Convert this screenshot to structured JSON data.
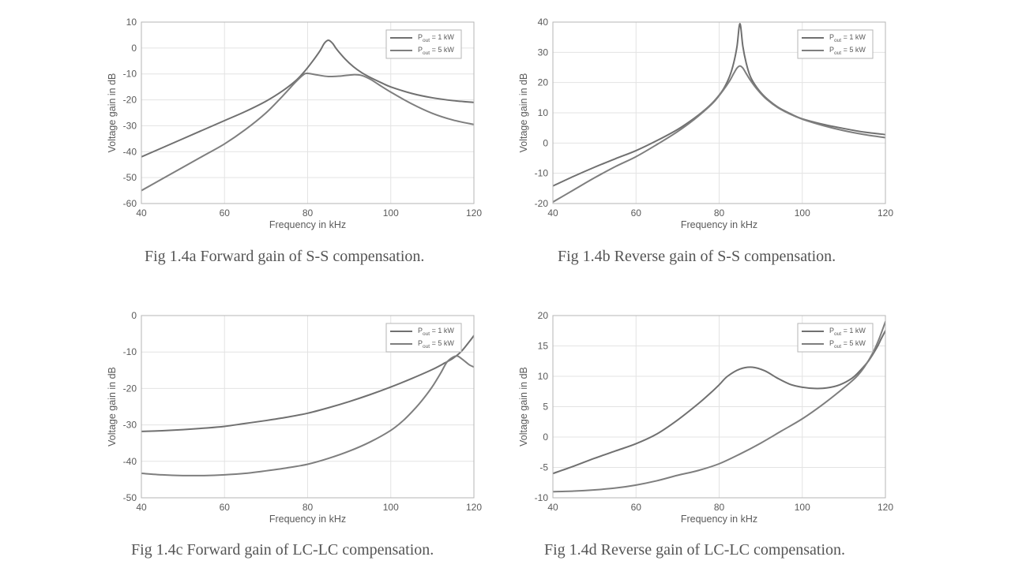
{
  "chart_data": [
    {
      "id": "a",
      "type": "line",
      "title": "",
      "xlabel": "Frequency in kHz",
      "ylabel": "Voltage gain in dB",
      "xlim": [
        40,
        120
      ],
      "ylim": [
        -60,
        10
      ],
      "xticks": [
        40,
        60,
        80,
        100,
        120
      ],
      "yticks": [
        -60,
        -50,
        -40,
        -30,
        -20,
        -10,
        0,
        10
      ],
      "grid": true,
      "legend_position": "top-right",
      "caption": "Fig 1.4a Forward gain of S-S compensation.",
      "series": [
        {
          "name": "P_out = 1 kW",
          "legend_main": "P",
          "legend_sub": "out",
          "legend_rest": " = 1 kW",
          "x": [
            40,
            45,
            50,
            55,
            60,
            65,
            70,
            74,
            77,
            79,
            81,
            83,
            84,
            85,
            86,
            87,
            89,
            91,
            93,
            95,
            98,
            100,
            105,
            110,
            115,
            120
          ],
          "y": [
            -42,
            -38.5,
            -35,
            -31.5,
            -28,
            -24.5,
            -20.5,
            -16.5,
            -12.8,
            -9.5,
            -5.5,
            -1,
            1.8,
            3,
            1.8,
            -0.5,
            -4.2,
            -7.2,
            -9.5,
            -11.3,
            -13.6,
            -15,
            -17.5,
            -19.2,
            -20.3,
            -21
          ]
        },
        {
          "name": "P_out = 5 kW",
          "legend_main": "P",
          "legend_sub": "out",
          "legend_rest": " = 5 kW",
          "x": [
            40,
            45,
            50,
            55,
            60,
            65,
            70,
            74,
            77,
            79,
            80,
            82,
            85,
            88,
            91,
            93,
            95,
            97,
            100,
            105,
            110,
            115,
            120
          ],
          "y": [
            -55,
            -50.5,
            -46,
            -41.5,
            -37,
            -31.5,
            -25,
            -18.5,
            -13.3,
            -10.3,
            -9.8,
            -10.3,
            -11,
            -10.8,
            -10.3,
            -10.6,
            -12,
            -14,
            -17,
            -21.5,
            -25.2,
            -27.8,
            -29.5
          ]
        }
      ]
    },
    {
      "id": "b",
      "type": "line",
      "title": "",
      "xlabel": "Frequency in kHz",
      "ylabel": "Voltage gain in dB",
      "xlim": [
        40,
        120
      ],
      "ylim": [
        -20,
        40
      ],
      "xticks": [
        40,
        60,
        80,
        100,
        120
      ],
      "yticks": [
        -20,
        -10,
        0,
        10,
        20,
        30,
        40
      ],
      "grid": true,
      "legend_position": "top-right",
      "caption": "Fig 1.4b Reverse gain of S-S compensation.",
      "series": [
        {
          "name": "P_out = 1 kW",
          "legend_main": "P",
          "legend_sub": "out",
          "legend_rest": " = 1 kW",
          "x": [
            40,
            45,
            50,
            55,
            60,
            65,
            70,
            74,
            77,
            79,
            81,
            82.5,
            83.5,
            84.3,
            85,
            85.7,
            86.5,
            87.5,
            89,
            91,
            94,
            97,
            100,
            105,
            110,
            115,
            120
          ],
          "y": [
            -14.2,
            -11,
            -8,
            -5.2,
            -2.5,
            0.8,
            4.5,
            8.2,
            11.5,
            14.2,
            17.8,
            22,
            26.5,
            32,
            39.5,
            32,
            26.5,
            22,
            18.5,
            15.3,
            12,
            9.8,
            8,
            6.2,
            4.8,
            3.6,
            2.8
          ]
        },
        {
          "name": "P_out = 5 kW",
          "legend_main": "P",
          "legend_sub": "out",
          "legend_rest": " = 5 kW",
          "x": [
            40,
            45,
            50,
            55,
            60,
            65,
            70,
            74,
            77,
            79,
            81,
            82.5,
            83.5,
            84.3,
            85,
            85.7,
            86.5,
            87.5,
            89,
            91,
            94,
            97,
            100,
            105,
            110,
            115,
            120
          ],
          "y": [
            -19.5,
            -15.5,
            -11.5,
            -7.8,
            -4.5,
            -0.5,
            3.8,
            7.8,
            11.3,
            14,
            17.5,
            20.5,
            23,
            24.8,
            25.5,
            24.8,
            23,
            20.8,
            18,
            15,
            11.8,
            9.6,
            7.9,
            5.8,
            4.1,
            2.8,
            1.8
          ]
        }
      ]
    },
    {
      "id": "c",
      "type": "line",
      "title": "",
      "xlabel": "Frequency in kHz",
      "ylabel": "Voltage gain in dB",
      "xlim": [
        40,
        120
      ],
      "ylim": [
        -50,
        0
      ],
      "xticks": [
        40,
        60,
        80,
        100,
        120
      ],
      "yticks": [
        -50,
        -40,
        -30,
        -20,
        -10,
        0
      ],
      "grid": true,
      "legend_position": "top-right",
      "caption": "Fig 1.4c Forward gain of LC-LC compensation.",
      "series": [
        {
          "name": "P_out = 1 kW",
          "legend_main": "P",
          "legend_sub": "out",
          "legend_rest": " = 1 kW",
          "x": [
            40,
            45,
            50,
            55,
            60,
            65,
            70,
            75,
            80,
            85,
            90,
            95,
            100,
            105,
            110,
            113,
            115,
            117,
            119,
            120
          ],
          "y": [
            -31.8,
            -31.6,
            -31.3,
            -30.9,
            -30.4,
            -29.6,
            -28.8,
            -27.9,
            -26.8,
            -25.3,
            -23.6,
            -21.7,
            -19.6,
            -17.3,
            -14.8,
            -13,
            -11.7,
            -9.8,
            -7,
            -5.5
          ]
        },
        {
          "name": "P_out = 5 kW",
          "legend_main": "P",
          "legend_sub": "out",
          "legend_rest": " = 5 kW",
          "x": [
            40,
            45,
            50,
            55,
            60,
            65,
            70,
            75,
            80,
            85,
            90,
            95,
            100,
            103,
            106,
            108,
            110,
            112,
            113.5,
            115,
            116,
            117,
            118,
            119,
            120
          ],
          "y": [
            -43.3,
            -43.7,
            -43.9,
            -43.9,
            -43.7,
            -43.3,
            -42.6,
            -41.8,
            -40.8,
            -39.2,
            -37.2,
            -34.7,
            -31.5,
            -28.8,
            -25.3,
            -22.6,
            -19.5,
            -15.8,
            -12.8,
            -11.4,
            -11.1,
            -11.8,
            -12.7,
            -13.6,
            -14.1
          ]
        }
      ]
    },
    {
      "id": "d",
      "type": "line",
      "title": "",
      "xlabel": "Frequency in kHz",
      "ylabel": "Voltage gain in dB",
      "xlim": [
        40,
        120
      ],
      "ylim": [
        -10,
        20
      ],
      "xticks": [
        40,
        60,
        80,
        100,
        120
      ],
      "yticks": [
        -10,
        -5,
        0,
        5,
        10,
        15,
        20
      ],
      "grid": true,
      "legend_position": "top-right",
      "caption": "Fig 1.4d Reverse gain of LC-LC compensation.",
      "series": [
        {
          "name": "P_out = 1 kW",
          "legend_main": "P",
          "legend_sub": "out",
          "legend_rest": " = 1 kW",
          "x": [
            40,
            45,
            50,
            55,
            60,
            65,
            70,
            75,
            78,
            80,
            82,
            85,
            88,
            91,
            94,
            97,
            100,
            103,
            106,
            109,
            112,
            114,
            116,
            118,
            119,
            120
          ],
          "y": [
            -6,
            -4.8,
            -3.5,
            -2.3,
            -1.1,
            0.5,
            2.8,
            5.5,
            7.3,
            8.6,
            10,
            11.2,
            11.5,
            10.9,
            9.7,
            8.7,
            8.2,
            8,
            8.1,
            8.6,
            9.7,
            11,
            12.6,
            14.8,
            16.2,
            17.5
          ]
        },
        {
          "name": "P_out = 5 kW",
          "legend_main": "P",
          "legend_sub": "out",
          "legend_rest": " = 5 kW",
          "x": [
            40,
            45,
            50,
            55,
            60,
            65,
            70,
            75,
            80,
            85,
            90,
            95,
            100,
            105,
            110,
            113,
            115,
            117,
            118.5,
            120
          ],
          "y": [
            -9,
            -8.9,
            -8.7,
            -8.4,
            -7.9,
            -7.2,
            -6.3,
            -5.5,
            -4.4,
            -2.8,
            -1,
            1,
            3,
            5.4,
            8.1,
            9.9,
            11.6,
            13.9,
            16.2,
            19
          ]
        }
      ]
    }
  ]
}
